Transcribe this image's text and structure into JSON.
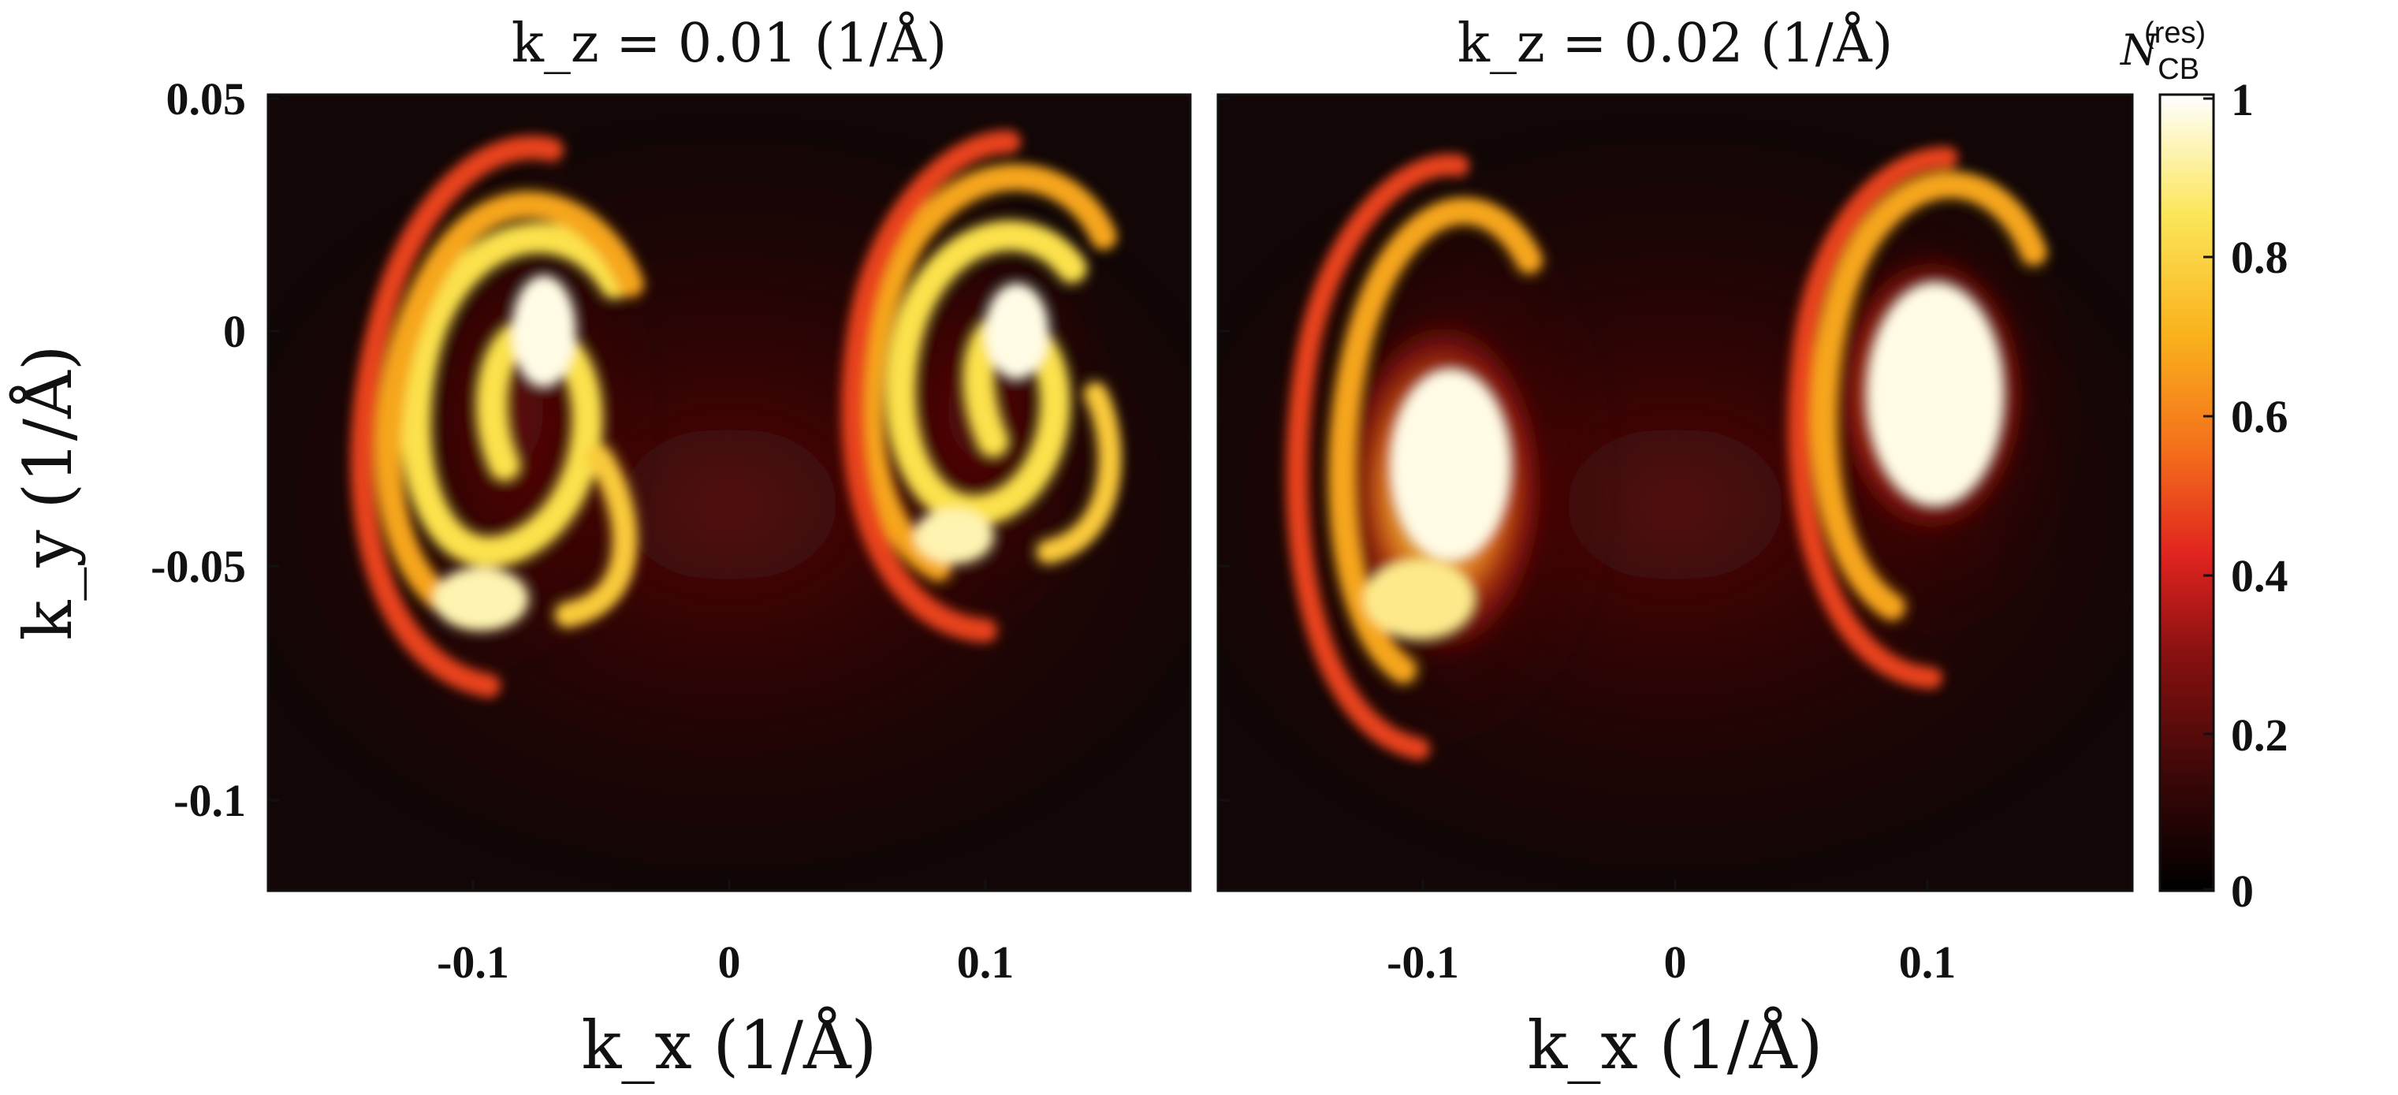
{
  "chart_data": [
    {
      "type": "heatmap",
      "title": "k_z = 0.01 (1/Å)",
      "xlabel": "k_x (1/Å)",
      "ylabel": "k_y (1/Å)",
      "xlim": [
        -0.18,
        0.18
      ],
      "ylim": [
        -0.12,
        0.05
      ],
      "xticks": [
        -0.1,
        0,
        0.1
      ],
      "xtick_labels": [
        "-0.1",
        "0",
        "0.1"
      ],
      "yticks": [
        0.05,
        0,
        -0.05,
        -0.1
      ],
      "ytick_labels": [
        "0.05",
        "0",
        "-0.05",
        "-0.1"
      ],
      "features": [
        {
          "name": "left spiral",
          "center": [
            -0.09,
            -0.02
          ],
          "peak": 1.0
        },
        {
          "name": "right spiral",
          "center": [
            0.1,
            -0.015
          ],
          "peak": 1.0
        }
      ]
    },
    {
      "type": "heatmap",
      "title": "k_z = 0.02 (1/Å)",
      "xlabel": "k_x (1/Å)",
      "ylabel": "",
      "xlim": [
        -0.18,
        0.18
      ],
      "ylim": [
        -0.12,
        0.05
      ],
      "xticks": [
        -0.1,
        0,
        0.1
      ],
      "xtick_labels": [
        "-0.1",
        "0",
        "0.1"
      ],
      "features": [
        {
          "name": "left blob",
          "center": [
            -0.09,
            -0.03
          ],
          "peak": 1.0
        },
        {
          "name": "right blob",
          "center": [
            0.105,
            -0.015
          ],
          "peak": 1.0
        }
      ]
    }
  ],
  "colorbar": {
    "label": "N",
    "label_sub": "CB",
    "label_sup": "(res)",
    "ticks": [
      0,
      0.2,
      0.4,
      0.6,
      0.8,
      1
    ],
    "tick_labels": [
      "0",
      "0.2",
      "0.4",
      "0.6",
      "0.8",
      "1"
    ],
    "range": [
      0,
      1
    ],
    "colormap": [
      "#000000",
      "#3a0707",
      "#8a1111",
      "#e0231f",
      "#f46d1c",
      "#f9b31c",
      "#fbe65a",
      "#ffffff"
    ]
  }
}
